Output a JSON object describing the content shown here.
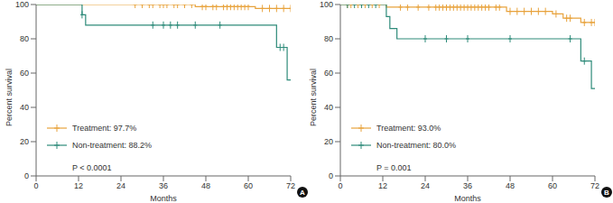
{
  "chart_data": [
    {
      "type": "line",
      "line_style": "step",
      "marker": "plus",
      "panel": "A",
      "xlabel": "Months",
      "ylabel": "Percent survival",
      "annotations": [
        "P < 0.0001"
      ],
      "xlim": [
        0,
        72
      ],
      "xticks": [
        0,
        12,
        24,
        36,
        48,
        60,
        72
      ],
      "ylim": [
        0,
        100
      ],
      "yticks": [
        0,
        20,
        40,
        60,
        80,
        100
      ],
      "grid": false,
      "series": [
        {
          "name": "Treatment: 97.7%",
          "color": "#e8a33d",
          "x": [
            0,
            45,
            62,
            72
          ],
          "values": [
            100,
            98.8,
            97.7,
            97.7
          ],
          "censor_x": [
            28,
            30,
            32,
            33,
            35,
            36,
            37,
            39,
            40,
            42,
            44,
            47,
            48,
            50,
            51,
            53,
            54,
            55,
            56,
            57,
            58,
            59,
            60,
            64,
            66,
            68,
            70,
            72
          ],
          "censor_values": [
            100,
            100,
            100,
            100,
            100,
            100,
            100,
            100,
            100,
            100,
            100,
            98.8,
            98.8,
            98.8,
            98.8,
            98.8,
            98.8,
            98.8,
            98.8,
            98.8,
            98.8,
            98.8,
            98.8,
            97.7,
            97.7,
            97.7,
            97.7,
            97.7
          ]
        },
        {
          "name": "Non-treatment: 88.2%",
          "color": "#2e8b7a",
          "x": [
            0,
            13,
            14,
            68,
            71,
            72
          ],
          "values": [
            100,
            94,
            88,
            75,
            56,
            56
          ],
          "censor_x": [
            13,
            33,
            36,
            38,
            40,
            45,
            52,
            69,
            70
          ],
          "censor_values": [
            94,
            88,
            88,
            88,
            88,
            88,
            88,
            75,
            75
          ]
        }
      ]
    },
    {
      "type": "line",
      "line_style": "step",
      "marker": "plus",
      "panel": "B",
      "xlabel": "Months",
      "ylabel": "Percent survival",
      "annotations": [
        "P = 0.001"
      ],
      "xlim": [
        0,
        72
      ],
      "xticks": [
        0,
        12,
        24,
        36,
        48,
        60,
        72
      ],
      "ylim": [
        0,
        100
      ],
      "yticks": [
        0,
        20,
        40,
        60,
        80,
        100
      ],
      "grid": false,
      "series": [
        {
          "name": "Treatment: 93.0%",
          "color": "#e8a33d",
          "x": [
            0,
            13,
            47,
            60,
            63,
            68,
            72
          ],
          "values": [
            100,
            98.5,
            96,
            94.5,
            92,
            89.5,
            89.5
          ],
          "censor_x": [
            2,
            3,
            5,
            6,
            7,
            9,
            11,
            17,
            19,
            22,
            25,
            27,
            28,
            29,
            30,
            31,
            32,
            33,
            34,
            35,
            36,
            37,
            38,
            39,
            40,
            41,
            42,
            44,
            45,
            48,
            50,
            52,
            54,
            56,
            58,
            61,
            64,
            65,
            69,
            71,
            72
          ],
          "censor_values": [
            100,
            100,
            100,
            100,
            100,
            100,
            100,
            98.5,
            98.5,
            98.5,
            98.5,
            98.5,
            98.5,
            98.5,
            98.5,
            98.5,
            98.5,
            98.5,
            98.5,
            98.5,
            98.5,
            98.5,
            98.5,
            98.5,
            98.5,
            98.5,
            98.5,
            98.5,
            98.5,
            96,
            96,
            96,
            96,
            96,
            96,
            94.5,
            92,
            92,
            89.5,
            89.5,
            89.5
          ]
        },
        {
          "name": "Non-treatment: 80.0%",
          "color": "#2e8b7a",
          "x": [
            0,
            13,
            14,
            16,
            68,
            71,
            72
          ],
          "values": [
            100,
            93,
            86,
            80,
            67,
            51,
            51
          ],
          "censor_x": [
            2,
            4,
            6,
            8,
            10,
            24,
            30,
            36,
            48,
            65,
            69
          ],
          "censor_values": [
            100,
            100,
            100,
            100,
            100,
            80,
            80,
            80,
            80,
            80,
            67
          ]
        }
      ]
    }
  ]
}
